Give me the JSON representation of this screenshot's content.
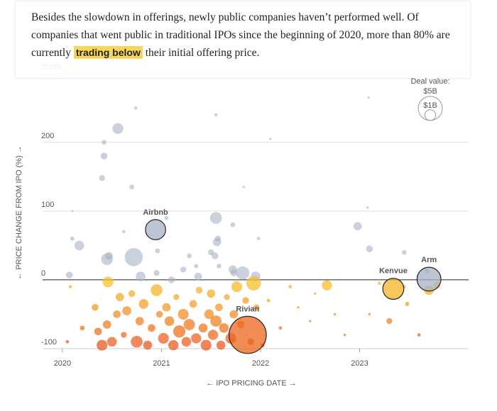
{
  "intro": {
    "before": "Besides the slowdown in offerings, newly public companies haven’t performed well. Of companies that went public in traditional IPOs since the beginning of 2020, more than 80% are currently",
    "highlight": "trading below",
    "after": "their initial offering price."
  },
  "chart_data": {
    "type": "bubble",
    "ylabel": "← PRICE CHANGE FROM IPO (%) →",
    "xlabel": "← IPO PRICING DATE →",
    "xlim": [
      2019.8,
      2024.1
    ],
    "xticks": [
      2020,
      2021,
      2022,
      2023
    ],
    "ylim": [
      -100,
      310
    ],
    "yticks": [
      -100,
      0,
      100,
      200,
      {
        "value": 300,
        "label": "300%"
      }
    ],
    "grid": true,
    "color_above": "#a7b0c6",
    "color_below": "#f7c325",
    "color_deep": "#e8501c",
    "size_legend": {
      "title": "Deal value:",
      "items": [
        {
          "value": 5,
          "label": "$5B"
        },
        {
          "value": 1,
          "label": "$1B"
        }
      ]
    },
    "x": [
      2020.07,
      2020.1,
      2020.1,
      2020.17,
      2020.42,
      2020.42,
      2020.4,
      2020.45,
      2020.47,
      2020.56,
      2020.62,
      2020.72,
      2020.7,
      2020.74,
      2020.79,
      2020.95,
      2020.96,
      2021.05,
      2021.1,
      2021.22,
      2021.28,
      2021.35,
      2021.37,
      2021.5,
      2021.55,
      2021.55,
      2021.56,
      2021.57,
      2021.54,
      2021.58,
      2021.72,
      2021.72,
      2021.73,
      2021.83,
      2021.82,
      2021.95,
      2021.98,
      2022.1,
      2022.98,
      2023.08,
      2023.09,
      2023.1,
      2023.45,
      2023.68,
      2020.05,
      2020.08,
      2020.2,
      2020.33,
      2020.36,
      2020.4,
      2020.45,
      2020.46,
      2020.5,
      2020.55,
      2020.58,
      2020.62,
      2020.65,
      2020.7,
      2020.75,
      2020.78,
      2020.82,
      2020.86,
      2020.9,
      2020.95,
      2020.98,
      2021.02,
      2021.05,
      2021.08,
      2021.12,
      2021.15,
      2021.18,
      2021.22,
      2021.25,
      2021.28,
      2021.32,
      2021.35,
      2021.38,
      2021.42,
      2021.45,
      2021.48,
      2021.5,
      2021.52,
      2021.55,
      2021.58,
      2021.6,
      2021.63,
      2021.66,
      2021.7,
      2021.73,
      2021.76,
      2021.8,
      2021.85,
      2021.9,
      2021.93,
      2021.96,
      2022.02,
      2022.08,
      2022.2,
      2022.3,
      2022.38,
      2022.5,
      2022.55,
      2022.67,
      2022.75,
      2022.85,
      2023.1,
      2023.2,
      2023.3,
      2023.48,
      2023.6,
      2023.7,
      2023.78,
      2023.45
    ],
    "values": [
      7,
      60,
      100,
      50,
      180,
      200,
      148,
      30,
      35,
      220,
      70,
      33,
      135,
      250,
      5,
      10,
      42,
      90,
      0,
      15,
      35,
      20,
      5,
      40,
      240,
      90,
      55,
      60,
      35,
      20,
      80,
      15,
      10,
      135,
      10,
      5,
      60,
      205,
      78,
      105,
      265,
      45,
      40,
      12,
      -90,
      -10,
      -70,
      -40,
      -75,
      -95,
      -65,
      -3,
      -90,
      -50,
      -25,
      -80,
      -45,
      -20,
      -90,
      -60,
      -35,
      -95,
      -70,
      -15,
      -50,
      -85,
      -40,
      -60,
      -95,
      -25,
      -75,
      -50,
      -90,
      -65,
      -35,
      -85,
      -15,
      -70,
      -95,
      -50,
      -20,
      -80,
      -60,
      -40,
      -95,
      -70,
      -25,
      -85,
      -50,
      -10,
      -65,
      -30,
      -90,
      -5,
      -40,
      -95,
      -30,
      -70,
      -10,
      -40,
      -60,
      -20,
      -8,
      -50,
      -80,
      -50,
      -5,
      -60,
      -35,
      -80,
      -15,
      -8,
      -10
    ],
    "sizes": [
      0.4,
      0.15,
      0.03,
      0.8,
      0.4,
      0.2,
      0.3,
      1.2,
      0.5,
      1.0,
      0.1,
      2.8,
      0.2,
      0.1,
      0.8,
      0.3,
      0.2,
      0.15,
      0.4,
      0.3,
      0.2,
      0.15,
      0.5,
      0.3,
      0.1,
      1.2,
      0.6,
      0.3,
      0.4,
      0.2,
      0.2,
      0.6,
      0.4,
      0.05,
      1.5,
      0.8,
      0.1,
      0.05,
      0.6,
      0.05,
      0.05,
      0.4,
      0.2,
      0.2,
      0.1,
      0.1,
      0.2,
      0.4,
      0.5,
      1.0,
      0.6,
      1.0,
      0.8,
      0.5,
      0.6,
      0.3,
      0.7,
      0.4,
      1.2,
      0.6,
      0.8,
      0.7,
      0.5,
      1.2,
      0.4,
      1.0,
      0.6,
      0.8,
      0.9,
      0.3,
      1.3,
      1.0,
      0.8,
      1.1,
      0.5,
      0.9,
      0.4,
      0.7,
      1.0,
      0.8,
      0.6,
      0.9,
      1.1,
      0.5,
      0.7,
      0.8,
      0.3,
      1.0,
      0.6,
      1.0,
      0.5,
      0.4,
      0.4,
      1.8,
      0.3,
      0.15,
      0.1,
      0.1,
      0.1,
      0.05,
      0.05,
      0.05,
      0.9,
      0.05,
      0.05,
      0.05,
      0.1,
      0.3,
      0.15,
      0.1,
      0.8,
      0.4,
      0.1
    ],
    "highlights": {
      "names": [
        "Airbnb",
        "Rivian",
        "Kenvue",
        "Arm"
      ],
      "x": [
        2020.94,
        2021.87,
        2023.34,
        2023.7
      ],
      "values": [
        73,
        -80,
        -13,
        1
      ],
      "sizes": [
        3.5,
        11.9,
        3.8,
        4.9
      ]
    }
  }
}
